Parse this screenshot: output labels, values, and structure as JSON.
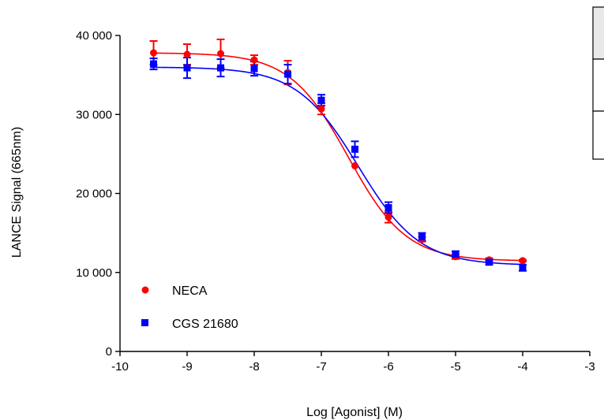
{
  "chart_data": {
    "type": "scatter",
    "title": "",
    "xlabel": "Log [Agonist] (M)",
    "ylabel": "LANCE Signal (665nm)",
    "xlim": [
      -10,
      -3
    ],
    "ylim": [
      0,
      40000
    ],
    "x_ticks": [
      -10,
      -9,
      -8,
      -7,
      -6,
      -5,
      -4,
      -3
    ],
    "x_tick_labels": [
      "-10",
      "-9",
      "-8",
      "-7",
      "-6",
      "-5",
      "-4",
      "-3"
    ],
    "y_ticks": [
      0,
      10000,
      20000,
      30000,
      40000
    ],
    "y_tick_labels": [
      "0",
      "10 000",
      "20 000",
      "30 000",
      "40 000"
    ],
    "grid": false,
    "legend_position": "bottom-left",
    "series": [
      {
        "name": "NECA",
        "color": "#ff0000",
        "marker": "circle",
        "x": [
          -9.5,
          -9,
          -8.5,
          -8,
          -7.5,
          -7,
          -6.5,
          -6,
          -5.5,
          -5,
          -4.5,
          -4
        ],
        "y": [
          37800,
          37600,
          37700,
          36900,
          35300,
          30700,
          23500,
          17000,
          14200,
          12000,
          11600,
          11500
        ],
        "err": [
          1500,
          1300,
          1800,
          600,
          1500,
          700,
          0,
          700,
          300,
          300,
          200,
          100
        ],
        "fit": {
          "bottom": 11450,
          "top": 37800,
          "logEC50": -6.6,
          "hill": 1.0
        }
      },
      {
        "name": "CGS 21680",
        "color": "#0000ff",
        "marker": "square",
        "x": [
          -9.5,
          -9,
          -8.5,
          -8,
          -7.5,
          -7,
          -6.5,
          -6,
          -5.5,
          -5,
          -4.5,
          -4
        ],
        "y": [
          36400,
          35900,
          35900,
          35800,
          35100,
          31800,
          25600,
          18200,
          14500,
          12300,
          11300,
          10600
        ],
        "err": [
          700,
          1300,
          1100,
          900,
          1200,
          700,
          1000,
          700,
          500,
          400,
          300,
          400
        ],
        "fit": {
          "bottom": 10900,
          "top": 36000,
          "logEC50": -6.45,
          "hill": 0.95
        }
      }
    ]
  },
  "table": {
    "rows": 3
  }
}
